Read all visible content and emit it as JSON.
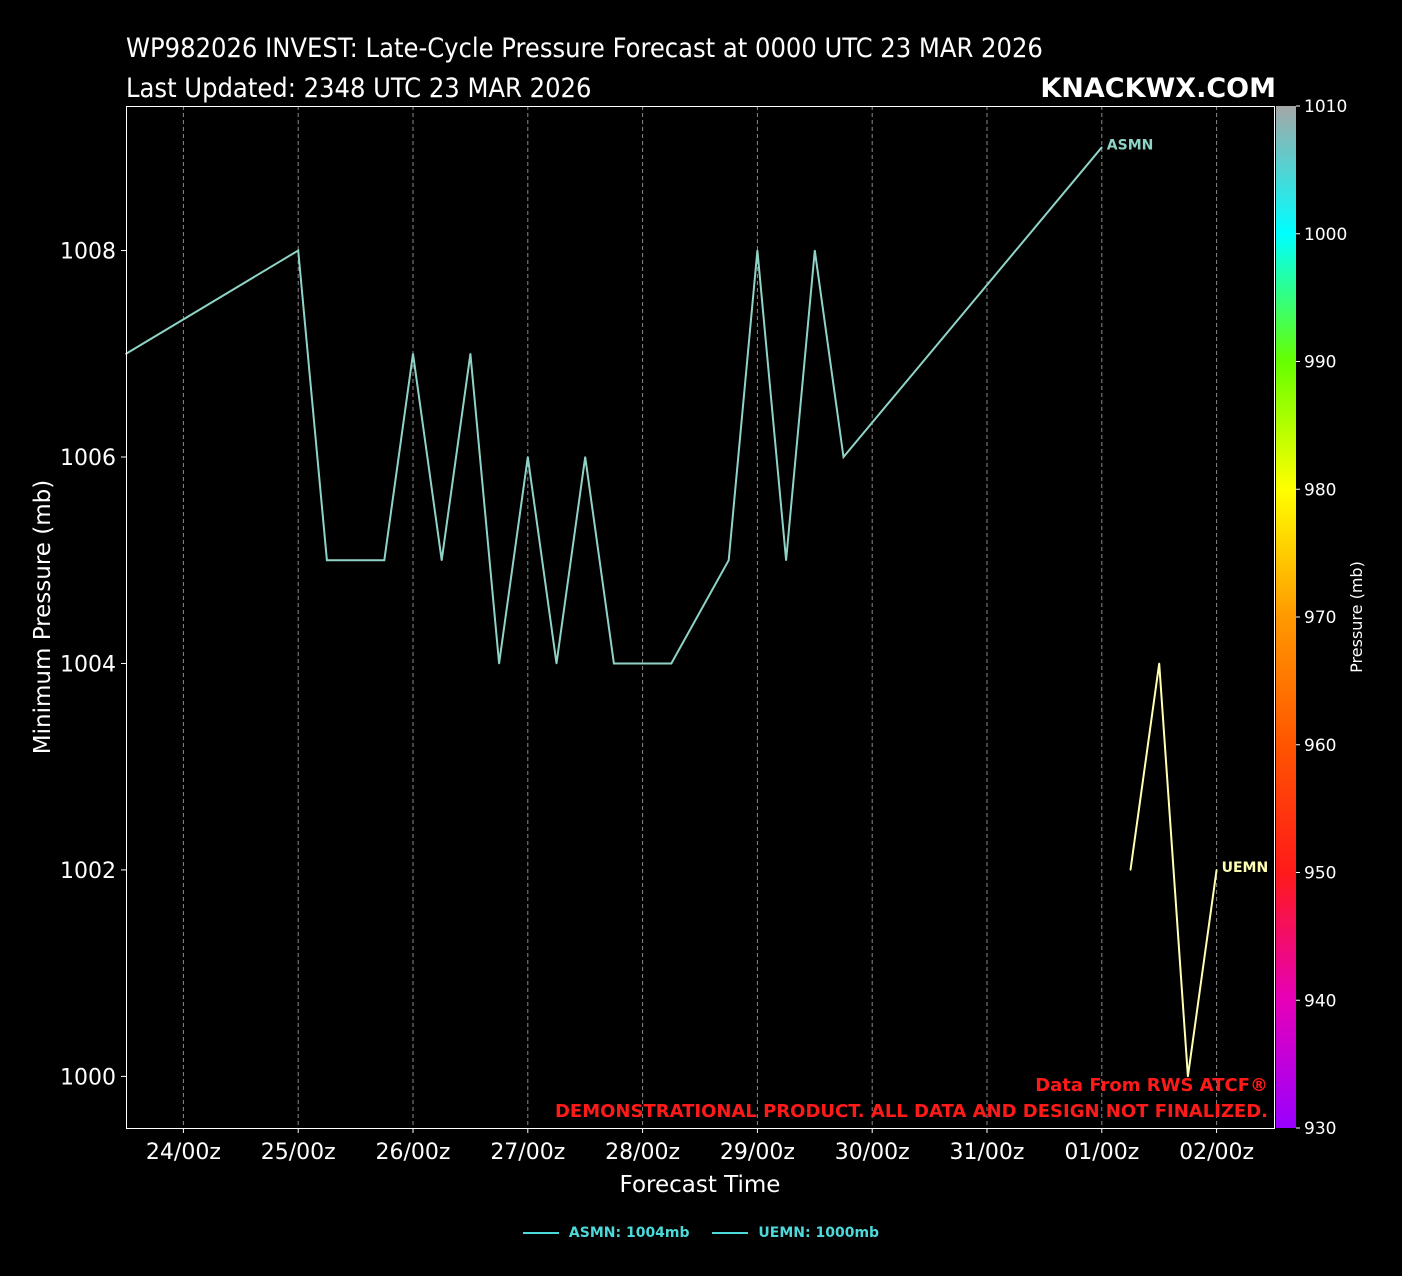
{
  "header": {
    "title_line1": "WP982026 INVEST: Late-Cycle Pressure Forecast at 0000 UTC 23 MAR 2026",
    "title_line2": "Last Updated: 2348 UTC 23 MAR 2026",
    "brand": "KNACKWX.COM"
  },
  "notes": {
    "source": "Data From RWS ATCF®",
    "disclaimer": "DEMONSTRATIONAL PRODUCT. ALL DATA AND DESIGN NOT FINALIZED."
  },
  "colorbar": {
    "label": "Pressure (mb)",
    "ticks": [
      "1010",
      "1000",
      "990",
      "980",
      "970",
      "960",
      "950",
      "940",
      "930"
    ],
    "range": [
      930,
      1010
    ],
    "stops": [
      {
        "value": 930,
        "color": "#9900ff"
      },
      {
        "value": 940,
        "color": "#e600b8"
      },
      {
        "value": 950,
        "color": "#ff1a1a"
      },
      {
        "value": 960,
        "color": "#ff5500"
      },
      {
        "value": 970,
        "color": "#ff9900"
      },
      {
        "value": 980,
        "color": "#ffff00"
      },
      {
        "value": 990,
        "color": "#66ff00"
      },
      {
        "value": 1000,
        "color": "#00ffff"
      },
      {
        "value": 1010,
        "color": "#a6a6a6"
      }
    ]
  },
  "legend": [
    {
      "label": "ASMN: 1004mb",
      "color": "#4dd9d9"
    },
    {
      "label": "UEMN: 1000mb",
      "color": "#4dd9d9"
    }
  ],
  "chart_data": {
    "type": "line",
    "xlabel": "Forecast Time",
    "ylabel": "Minimum Pressure (mb)",
    "xlim": [
      "2026-03-23 12:00",
      "2026-04-02 12:00"
    ],
    "ylim": [
      999.5,
      1009.4
    ],
    "grid": "vertical dashed",
    "x_ticks": [
      {
        "t": "2026-03-24 00:00",
        "label": "24/00z"
      },
      {
        "t": "2026-03-25 00:00",
        "label": "25/00z"
      },
      {
        "t": "2026-03-26 00:00",
        "label": "26/00z"
      },
      {
        "t": "2026-03-27 00:00",
        "label": "27/00z"
      },
      {
        "t": "2026-03-28 00:00",
        "label": "28/00z"
      },
      {
        "t": "2026-03-29 00:00",
        "label": "29/00z"
      },
      {
        "t": "2026-03-30 00:00",
        "label": "30/00z"
      },
      {
        "t": "2026-03-31 00:00",
        "label": "31/00z"
      },
      {
        "t": "2026-04-01 00:00",
        "label": "01/00z"
      },
      {
        "t": "2026-04-02 00:00",
        "label": "02/00z"
      }
    ],
    "y_ticks": [
      {
        "v": 1000,
        "label": "1000"
      },
      {
        "v": 1002,
        "label": "1002"
      },
      {
        "v": 1004,
        "label": "1004"
      },
      {
        "v": 1006,
        "label": "1006"
      },
      {
        "v": 1008,
        "label": "1008"
      }
    ],
    "series": [
      {
        "name": "ASMN",
        "color": "#8fd3c7",
        "x": [
          "2026-03-23 12:00",
          "2026-03-25 00:00",
          "2026-03-25 06:00",
          "2026-03-25 18:00",
          "2026-03-26 00:00",
          "2026-03-26 06:00",
          "2026-03-26 12:00",
          "2026-03-26 18:00",
          "2026-03-27 00:00",
          "2026-03-27 06:00",
          "2026-03-27 12:00",
          "2026-03-27 18:00",
          "2026-03-28 06:00",
          "2026-03-28 18:00",
          "2026-03-29 00:00",
          "2026-03-29 06:00",
          "2026-03-29 12:00",
          "2026-03-29 18:00",
          "2026-04-01 00:00"
        ],
        "values": [
          1007,
          1008,
          1005,
          1005,
          1007,
          1005,
          1007,
          1004,
          1006,
          1004,
          1006,
          1004,
          1004,
          1005,
          1008,
          1005,
          1008,
          1006,
          1009
        ]
      },
      {
        "name": "UEMN",
        "color": "#ffffb3",
        "x": [
          "2026-04-01 06:00",
          "2026-04-01 12:00",
          "2026-04-01 18:00",
          "2026-04-02 00:00"
        ],
        "values": [
          1002,
          1004,
          1000,
          1002
        ]
      }
    ]
  }
}
